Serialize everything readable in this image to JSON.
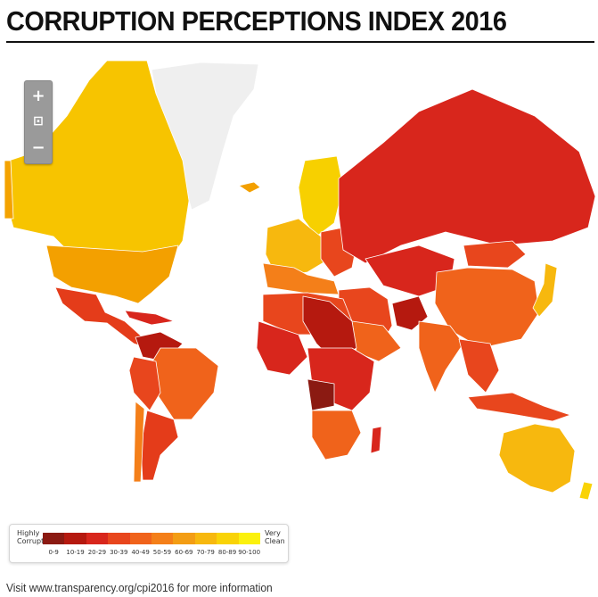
{
  "title": "CORRUPTION PERCEPTIONS INDEX 2016",
  "zoom": {
    "in": "+",
    "reset": "⊡",
    "out": "−"
  },
  "legend": {
    "low_label": "Highly Corrupt",
    "high_label": "Very Clean",
    "ranges": [
      "0-9",
      "10-19",
      "20-29",
      "30-39",
      "40-49",
      "50-59",
      "60-69",
      "70-79",
      "80-89",
      "90-100"
    ],
    "colors": [
      "#8b1a12",
      "#b5190f",
      "#d8261c",
      "#e8461d",
      "#f0631b",
      "#f47f19",
      "#f39d14",
      "#f7b80e",
      "#f9d307",
      "#fbf10d"
    ]
  },
  "colors": {
    "no_data": "#efefef",
    "ocean": "#ffffff"
  },
  "footer": "Visit www.transparency.org/cpi2016 for more information"
}
